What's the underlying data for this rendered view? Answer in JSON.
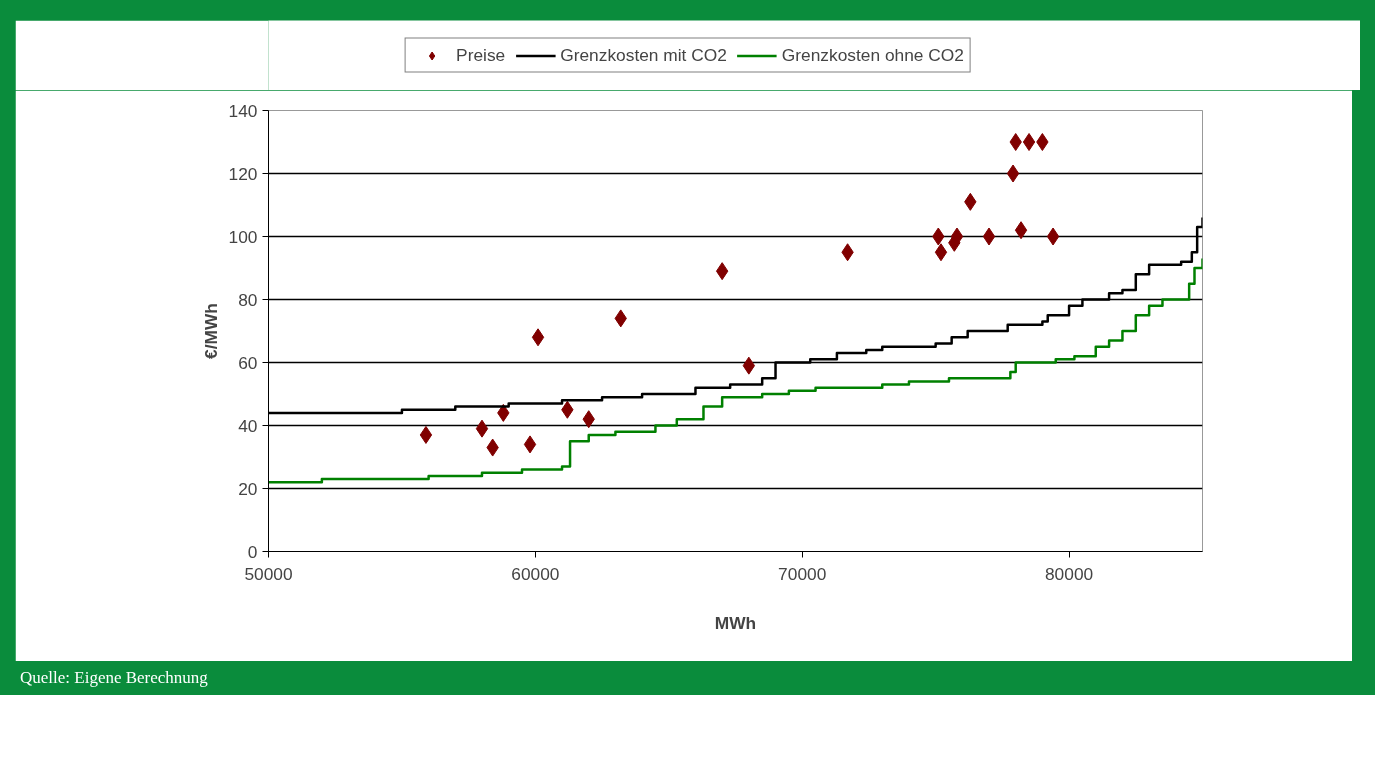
{
  "chart_data": {
    "type": "step",
    "xlabel": "MWh",
    "ylabel": "€/MWh",
    "xlim": [
      50000,
      85000
    ],
    "xticks": [
      50000,
      60000,
      70000,
      80000
    ],
    "ylim": [
      0,
      140
    ],
    "yticks": [
      0,
      20,
      40,
      60,
      80,
      100,
      120,
      140
    ],
    "grid": "y",
    "legend": "top",
    "annotations": [
      "Quelle: Eigene Berechnung"
    ],
    "series": [
      {
        "name": "Preise",
        "type": "scatter",
        "marker": "diamond",
        "color": "#800000",
        "x": [
          55900,
          58000,
          58400,
          58800,
          59800,
          60100,
          61200,
          62000,
          63200,
          67000,
          68000,
          71700,
          75100,
          75200,
          75700,
          75800,
          76300,
          77000,
          77900,
          78000,
          78200,
          78500,
          79000,
          79400
        ],
        "values": [
          37,
          39,
          33,
          44,
          34,
          68,
          45,
          42,
          74,
          89,
          59,
          95,
          100,
          95,
          98,
          100,
          111,
          100,
          120,
          130,
          102,
          130,
          130,
          100
        ]
      },
      {
        "name": "Grenzkosten mit CO2",
        "marker": "none",
        "color": "#000000",
        "x": [
          50000,
          55000,
          57000,
          59000,
          61000,
          62500,
          64000,
          66000,
          67300,
          68500,
          69000,
          70300,
          71300,
          72400,
          73000,
          75000,
          75600,
          76200,
          77700,
          79000,
          79200,
          80000,
          80500,
          81500,
          82000,
          82500,
          83000,
          84200,
          84600,
          84800,
          85000
        ],
        "values": [
          44,
          45,
          46,
          47,
          48,
          49,
          50,
          52,
          53,
          55,
          60,
          61,
          63,
          64,
          65,
          66,
          68,
          70,
          72,
          73,
          75,
          78,
          80,
          82,
          83,
          88,
          91,
          92,
          95,
          103,
          106
        ]
      },
      {
        "name": "Grenzkosten ohne CO2",
        "marker": "none",
        "color": "#008000",
        "x": [
          50000,
          52000,
          56000,
          58000,
          59500,
          61000,
          61300,
          62000,
          63000,
          64500,
          65300,
          66300,
          67000,
          68500,
          69500,
          70500,
          73000,
          74000,
          75500,
          77800,
          78000,
          79500,
          80200,
          81000,
          81500,
          82000,
          82500,
          83000,
          83500,
          84500,
          84700,
          85000
        ],
        "values": [
          22,
          23,
          24,
          25,
          26,
          27,
          35,
          37,
          38,
          40,
          42,
          46,
          49,
          50,
          51,
          52,
          53,
          54,
          55,
          57,
          60,
          61,
          62,
          65,
          67,
          70,
          75,
          78,
          80,
          85,
          90,
          93
        ]
      }
    ]
  }
}
